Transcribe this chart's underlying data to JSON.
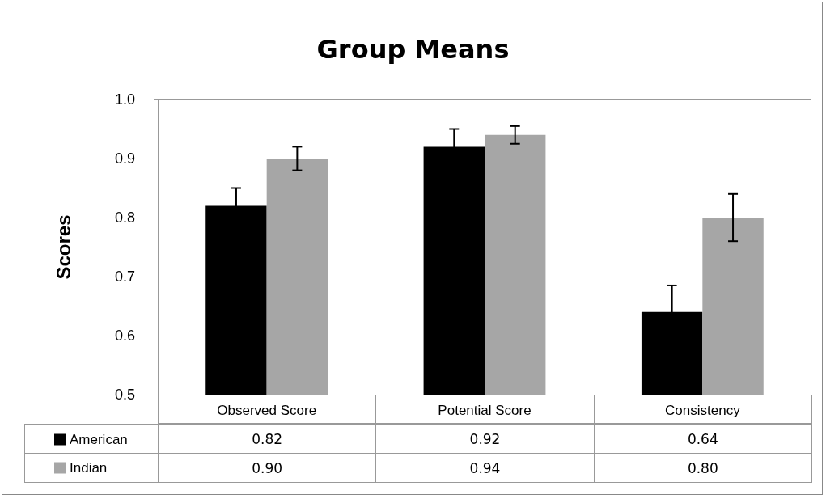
{
  "chart_data": {
    "type": "bar",
    "title": "Group Means",
    "ylabel": "Scores",
    "categories": [
      "Observed Score",
      "Potential Score",
      "Consistency"
    ],
    "series": [
      {
        "name": "American",
        "color": "#000000",
        "values": [
          0.82,
          0.92,
          0.64
        ],
        "value_labels": [
          "0.82",
          "0.92",
          "0.64"
        ],
        "errors": [
          0.03,
          0.03,
          0.045
        ]
      },
      {
        "name": "Indian",
        "color": "#a6a6a6",
        "values": [
          0.9,
          0.94,
          0.8
        ],
        "value_labels": [
          "0.90",
          "0.94",
          "0.80"
        ],
        "errors": [
          0.02,
          0.015,
          0.04
        ]
      }
    ],
    "ylim": [
      0.5,
      1.0
    ],
    "yticks": [
      0.5,
      0.6,
      0.7,
      0.8,
      0.9,
      {
        "value": 1.0,
        "label": "1.0"
      }
    ],
    "grid": "y",
    "legend": "bottom left"
  }
}
